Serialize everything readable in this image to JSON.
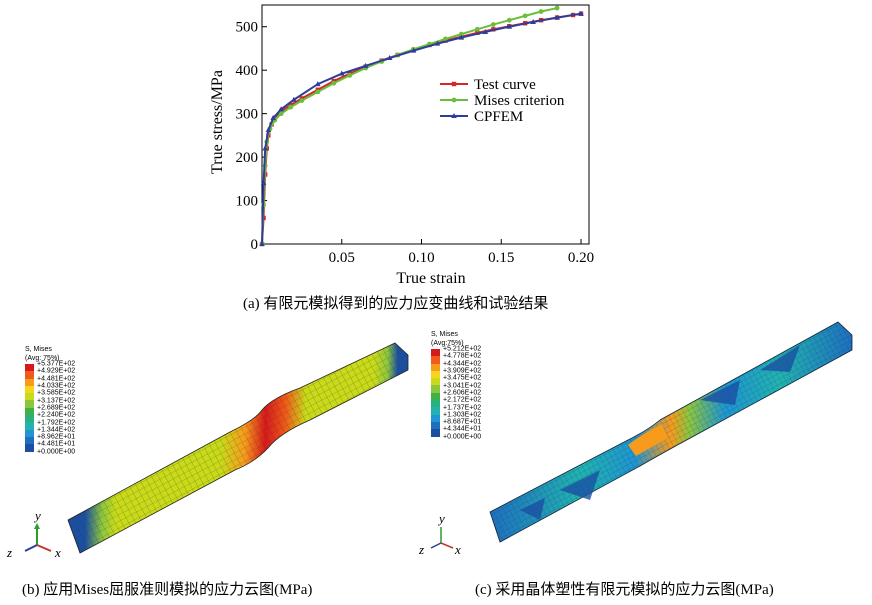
{
  "chart_data": [
    {
      "type": "line",
      "panel": "a",
      "title": "",
      "xlabel": "True strain",
      "ylabel": "True stress/MPa",
      "xlim": [
        0,
        0.205
      ],
      "ylim": [
        0,
        550
      ],
      "xticks": [
        {
          "value": 0.05,
          "label": "0.05"
        },
        {
          "value": 0.1,
          "label": "0.10"
        },
        {
          "value": 0.15,
          "label": "0.15"
        },
        {
          "value": 0.2,
          "label": "0.20"
        }
      ],
      "yticks": [
        {
          "value": 0,
          "label": "0"
        },
        {
          "value": 100,
          "label": "100"
        },
        {
          "value": 200,
          "label": "200"
        },
        {
          "value": 300,
          "label": "300"
        },
        {
          "value": 400,
          "label": "400"
        },
        {
          "value": 500,
          "label": "500"
        }
      ],
      "grid": false,
      "legend_position": "right",
      "series": [
        {
          "name": "Test curve",
          "color": "#d62728",
          "marker": "square",
          "x": [
            0.0,
            0.001,
            0.002,
            0.003,
            0.004,
            0.006,
            0.008,
            0.012,
            0.018,
            0.025,
            0.035,
            0.045,
            0.055,
            0.065,
            0.075,
            0.085,
            0.095,
            0.105,
            0.115,
            0.125,
            0.135,
            0.145,
            0.155,
            0.165,
            0.175,
            0.185,
            0.195,
            0.2
          ],
          "y": [
            0,
            60,
            160,
            220,
            250,
            275,
            290,
            305,
            320,
            335,
            355,
            375,
            392,
            408,
            422,
            435,
            447,
            458,
            468,
            477,
            486,
            494,
            501,
            508,
            515,
            521,
            527,
            530
          ]
        },
        {
          "name": "Mises criterion",
          "color": "#6abf3a",
          "marker": "circle",
          "x": [
            0.0,
            0.001,
            0.002,
            0.003,
            0.005,
            0.008,
            0.012,
            0.018,
            0.025,
            0.035,
            0.045,
            0.055,
            0.065,
            0.075,
            0.085,
            0.095,
            0.105,
            0.115,
            0.125,
            0.135,
            0.145,
            0.155,
            0.165,
            0.175,
            0.185
          ],
          "y": [
            0,
            90,
            180,
            235,
            265,
            285,
            300,
            315,
            330,
            350,
            370,
            388,
            405,
            420,
            435,
            448,
            460,
            472,
            483,
            494,
            505,
            515,
            525,
            535,
            543
          ]
        },
        {
          "name": "CPFEM",
          "color": "#2e3d9a",
          "marker": "triangle",
          "x": [
            0.0,
            0.001,
            0.002,
            0.004,
            0.007,
            0.012,
            0.02,
            0.035,
            0.05,
            0.065,
            0.08,
            0.095,
            0.11,
            0.125,
            0.14,
            0.155,
            0.17,
            0.185,
            0.2
          ],
          "y": [
            0,
            140,
            220,
            262,
            290,
            310,
            332,
            368,
            392,
            410,
            428,
            445,
            461,
            475,
            488,
            500,
            511,
            521,
            530
          ]
        }
      ]
    },
    {
      "type": "heatmap",
      "panel": "b",
      "legend_title": "S, Mises",
      "legend_subtitle": "(Avg: 75%)",
      "levels": [
        "+5.377E+02",
        "+4.929E+02",
        "+4.481E+02",
        "+4.033E+02",
        "+3.585E+02",
        "+3.137E+02",
        "+2.689E+02",
        "+2.240E+02",
        "+1.792E+02",
        "+1.344E+02",
        "+8.962E+01",
        "+4.481E+01",
        "+0.000E+00"
      ],
      "colors": [
        "#d7191c",
        "#f05a1a",
        "#f89a1c",
        "#f7d51a",
        "#c8da1a",
        "#8cc63f",
        "#3fb04a",
        "#2ab07a",
        "#22b3b0",
        "#1f95d2",
        "#1f6fc0",
        "#1a4fa3"
      ]
    },
    {
      "type": "heatmap",
      "panel": "c",
      "legend_title": "S, Mises",
      "legend_subtitle": "(Avg:75%)",
      "levels": [
        "+5.212E+02",
        "+4.778E+02",
        "+4.344E+02",
        "+3.909E+02",
        "+3.475E+02",
        "+3.041E+02",
        "+2.606E+02",
        "+2.172E+02",
        "+1.737E+02",
        "+1.303E+02",
        "+8.687E+01",
        "+4.344E+01",
        "+0.000E+00"
      ],
      "colors": [
        "#d7191c",
        "#f05a1a",
        "#f89a1c",
        "#f7d51a",
        "#c8da1a",
        "#8cc63f",
        "#3fb04a",
        "#2ab07a",
        "#22b3b0",
        "#1f95d2",
        "#1f6fc0",
        "#1a4fa3"
      ]
    }
  ],
  "captions": {
    "a": "(a) 有限元模拟得到的应力应变曲线和试验结果",
    "b": "(b) 应用Mises屈服准则模拟的应力云图(MPa)",
    "c": "(c) 采用晶体塑性有限元模拟的应力云图(MPa)"
  },
  "triad": {
    "x": "x",
    "y": "y",
    "z": "z"
  }
}
